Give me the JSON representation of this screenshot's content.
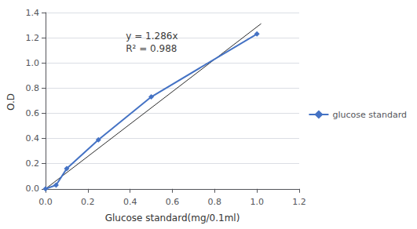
{
  "chart_data": {
    "type": "line",
    "xlabel": "Glucose standard(mg/0.1ml)",
    "ylabel": "O.D",
    "series": [
      {
        "type": "line",
        "x": [
          0,
          1.02
        ],
        "values": [
          0,
          1.31172
        ],
        "color": "#2b2b2b",
        "line_style": "solid"
      },
      {
        "type": "line",
        "name": "glucose standard",
        "x": [
          0,
          0.05,
          0.1,
          0.25,
          0.5,
          1.0
        ],
        "values": [
          0,
          0.03,
          0.16,
          0.39,
          0.73,
          1.23
        ],
        "color": "#4472C4",
        "marker": "diamond",
        "line_style": "solid"
      }
    ],
    "annotations": [
      {
        "text": [
          "y = 1.286x",
          "R² = 0.988"
        ],
        "x": 0.38,
        "y": 1.26
      }
    ],
    "xlim": [
      0,
      1.2
    ],
    "xticks": [
      {
        "value": 0,
        "label": "0.0"
      },
      0.2,
      0.4,
      0.6,
      0.8,
      {
        "value": 1.0,
        "label": "1.0"
      },
      1.2
    ],
    "ylim": [
      -0.02,
      1.4
    ],
    "yticks": [
      {
        "value": 0,
        "label": "0.0"
      },
      0.2,
      0.4,
      0.6,
      0.8,
      {
        "value": 1.0,
        "label": "1.0"
      },
      1.2,
      1.4
    ],
    "grid": "y",
    "legend": "right"
  }
}
